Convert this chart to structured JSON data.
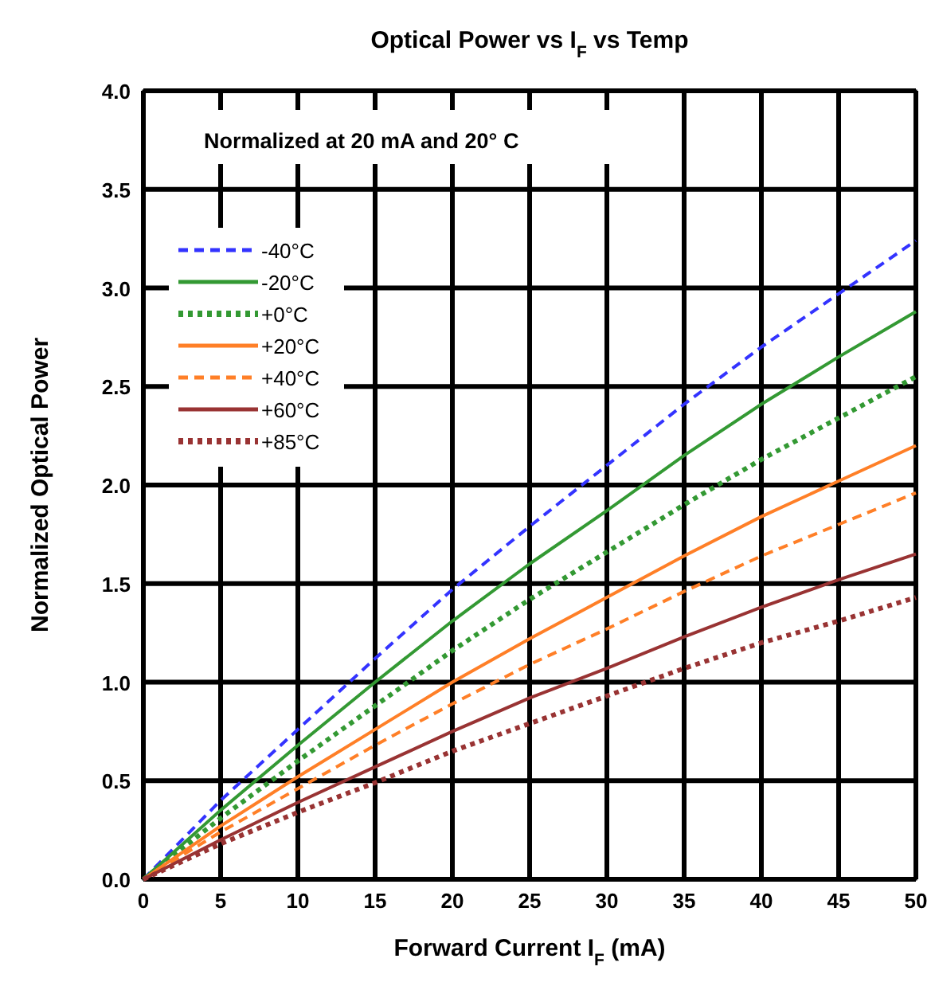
{
  "chart_data": {
    "type": "line",
    "title": "Optical Power vs I$_{F}$  vs Temp",
    "xlabel": "Forward Current I$_{F}$ (mA)",
    "ylabel": "Normalized Optical Power",
    "annotations": [
      "Normalized at 20 mA and 20° C"
    ],
    "x": [
      0,
      5,
      10,
      15,
      20,
      25,
      30,
      35,
      40,
      45,
      50
    ],
    "series": [
      {
        "name": "-40°C",
        "color": "#3333ff",
        "line_style": "dashed",
        "values": [
          0,
          0.4,
          0.76,
          1.12,
          1.47,
          1.79,
          2.1,
          2.41,
          2.7,
          2.97,
          3.24
        ]
      },
      {
        "name": "-20°C",
        "color": "#339933",
        "line_style": "solid",
        "values": [
          0,
          0.35,
          0.68,
          1.0,
          1.31,
          1.6,
          1.87,
          2.15,
          2.41,
          2.65,
          2.88
        ]
      },
      {
        "name": "+0°C",
        "color": "#339933",
        "line_style": "dotted",
        "values": [
          0,
          0.31,
          0.6,
          0.88,
          1.16,
          1.42,
          1.66,
          1.9,
          2.13,
          2.34,
          2.55
        ]
      },
      {
        "name": "+20°C",
        "color": "#ff7f27",
        "line_style": "solid",
        "values": [
          0,
          0.27,
          0.52,
          0.76,
          1.0,
          1.22,
          1.43,
          1.64,
          1.84,
          2.02,
          2.2
        ]
      },
      {
        "name": "+40°C",
        "color": "#ff7f27",
        "line_style": "dashed",
        "values": [
          0,
          0.24,
          0.46,
          0.68,
          0.89,
          1.09,
          1.27,
          1.46,
          1.64,
          1.8,
          1.96
        ]
      },
      {
        "name": "+60°C",
        "color": "#993333",
        "line_style": "solid",
        "values": [
          0,
          0.2,
          0.39,
          0.57,
          0.75,
          0.92,
          1.07,
          1.23,
          1.38,
          1.52,
          1.65
        ]
      },
      {
        "name": "+85°C",
        "color": "#993333",
        "line_style": "dotted",
        "values": [
          0,
          0.18,
          0.34,
          0.49,
          0.65,
          0.79,
          0.93,
          1.07,
          1.2,
          1.31,
          1.43
        ]
      }
    ],
    "xlim": [
      0,
      50
    ],
    "xticks": [
      0,
      5,
      10,
      15,
      20,
      25,
      30,
      35,
      40,
      45,
      50
    ],
    "ylim": [
      0,
      4
    ],
    "yticks": [
      {
        "value": 0,
        "label": "0.0"
      },
      {
        "value": 0.5,
        "label": "0.5"
      },
      {
        "value": 1,
        "label": "1.0"
      },
      {
        "value": 1.5,
        "label": "1.5"
      },
      {
        "value": 2,
        "label": "2.0"
      },
      {
        "value": 2.5,
        "label": "2.5"
      },
      {
        "value": 3,
        "label": "3.0"
      },
      {
        "value": 3.5,
        "label": "3.5"
      },
      {
        "value": 4,
        "label": "4.0"
      }
    ],
    "grid": true,
    "legend": "top left"
  }
}
